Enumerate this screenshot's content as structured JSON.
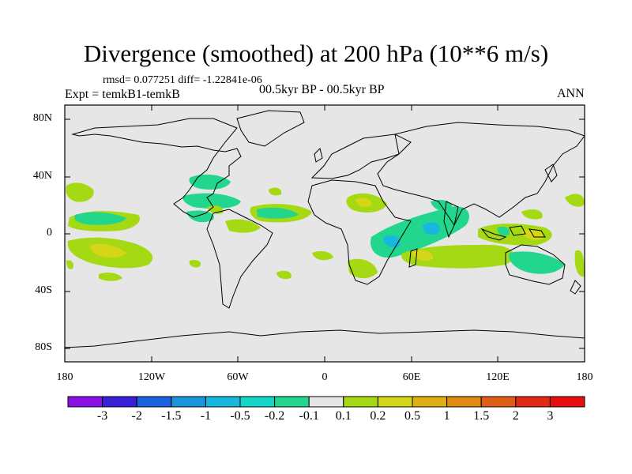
{
  "title": "Divergence (smoothed) at 200 hPa (10**6 m/s)",
  "stats": "rmsd= 0.077251 diff= -1.22841e-06",
  "expt": "Expt = temkB1-temkB",
  "period": "00.5kyr BP - 00.5kyr BP",
  "season": "ANN",
  "map": {
    "projection": "cylindrical equidistant",
    "lon_range": [
      -180,
      180
    ],
    "lat_range": [
      -90,
      90
    ],
    "lat_labels": [
      "80N",
      "40N",
      "0",
      "40S",
      "80S"
    ],
    "lon_labels": [
      "180",
      "120W",
      "60W",
      "0",
      "60E",
      "120E",
      "180"
    ]
  },
  "colorbar": {
    "labels": [
      "-3",
      "-2",
      "-1.5",
      "-1",
      "-0.5",
      "-0.2",
      "-0.1",
      "0.1",
      "0.2",
      "0.5",
      "1",
      "1.5",
      "2",
      "3"
    ],
    "colors": [
      "#8b10e6",
      "#3a1fd9",
      "#1b62e0",
      "#1995de",
      "#18b8de",
      "#14d6c8",
      "#22d68e",
      "#e6e6e6",
      "#a5d913",
      "#d4d617",
      "#e0b013",
      "#e08913",
      "#e05e13",
      "#e02a13",
      "#e60f0f"
    ]
  },
  "colors": {
    "background": "#e6e6e6",
    "coast": "#000000"
  }
}
